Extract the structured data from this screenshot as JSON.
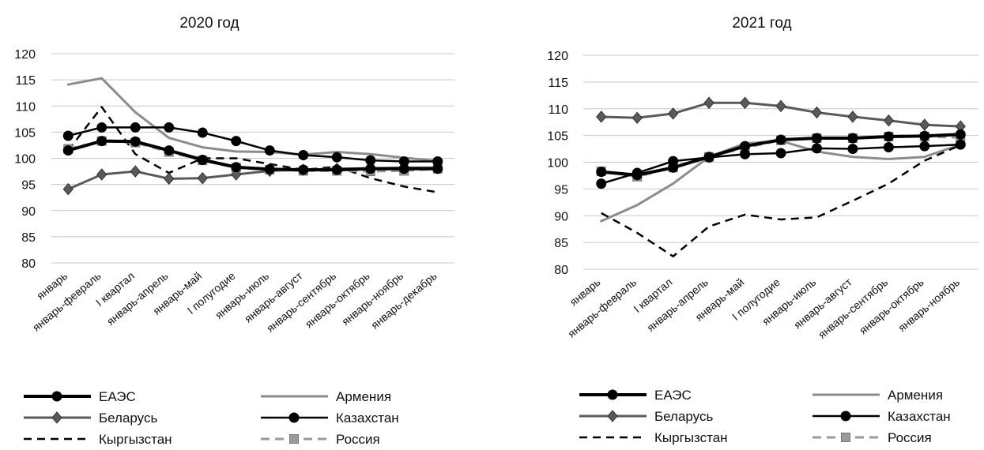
{
  "chart_data": [
    {
      "type": "line",
      "title": "2020 год",
      "xlabel": "",
      "ylabel": "",
      "ylim": [
        80,
        120
      ],
      "yticks": [
        80,
        85,
        90,
        95,
        100,
        105,
        110,
        115,
        120
      ],
      "grid": true,
      "legend_position": "bottom",
      "categories": [
        "январь",
        "январь-февраль",
        "I квартал",
        "январь-апрель",
        "январь-май",
        "I полугодие",
        "январь-июль",
        "январь-август",
        "январь-сентябрь",
        "январь-октябрь",
        "январь-ноябрь",
        "январь-декабрь"
      ],
      "series": [
        {
          "name": "ЕАЭС",
          "values": [
            101.5,
            103.3,
            103.2,
            101.5,
            99.7,
            98.3,
            97.9,
            97.8,
            97.8,
            98.0,
            98.0,
            98.0
          ]
        },
        {
          "name": "Армения",
          "values": [
            114.1,
            115.3,
            108.8,
            103.9,
            102.1,
            101.3,
            101.2,
            100.7,
            101.2,
            100.8,
            100.1,
            99.5
          ]
        },
        {
          "name": "Беларусь",
          "values": [
            94.1,
            96.9,
            97.5,
            96.1,
            96.2,
            96.9,
            97.6,
            97.8,
            98.0,
            98.1,
            98.2,
            98.2
          ]
        },
        {
          "name": "Казахстан",
          "values": [
            104.3,
            105.9,
            105.9,
            105.9,
            104.9,
            103.3,
            101.5,
            100.6,
            100.2,
            99.6,
            99.4,
            99.4
          ]
        },
        {
          "name": "Кыргызстан",
          "values": [
            101.5,
            109.8,
            100.8,
            97.2,
            100.0,
            100.0,
            98.9,
            97.8,
            98.4,
            96.2,
            94.6,
            93.5
          ]
        },
        {
          "name": "Россия",
          "values": [
            101.8,
            103.3,
            103.0,
            101.2,
            99.6,
            98.2,
            97.8,
            97.6,
            97.6,
            97.5,
            97.6,
            98.0
          ]
        }
      ]
    },
    {
      "type": "line",
      "title": "2021 год",
      "xlabel": "",
      "ylabel": "",
      "ylim": [
        80,
        120
      ],
      "yticks": [
        80,
        85,
        90,
        95,
        100,
        105,
        110,
        115,
        120
      ],
      "grid": true,
      "legend_position": "bottom",
      "categories": [
        "январь",
        "январь-февраль",
        "I квартал",
        "январь-апрель",
        "январь-май",
        "I полугодие",
        "январь-июль",
        "январь-август",
        "январь-сентябрь",
        "январь-октябрь",
        "январь-ноябрь"
      ],
      "series": [
        {
          "name": "ЕАЭС",
          "values": [
            98.2,
            97.6,
            99.0,
            101.0,
            103.0,
            104.2,
            104.5,
            104.5,
            104.8,
            104.9,
            105.2
          ]
        },
        {
          "name": "Армения",
          "values": [
            89.0,
            92.0,
            96.0,
            101.0,
            103.5,
            104.0,
            102.0,
            101.0,
            100.6,
            101.0,
            103.3
          ]
        },
        {
          "name": "Беларусь",
          "values": [
            108.5,
            108.3,
            109.1,
            111.1,
            111.1,
            110.5,
            109.3,
            108.5,
            107.8,
            107.0,
            106.7
          ]
        },
        {
          "name": "Казахстан",
          "values": [
            96.0,
            98.0,
            100.2,
            100.9,
            101.5,
            101.7,
            102.6,
            102.5,
            102.8,
            103.0,
            103.3
          ]
        },
        {
          "name": "Кыргызстан",
          "values": [
            90.5,
            86.8,
            82.4,
            88.0,
            90.2,
            89.3,
            89.7,
            92.8,
            96.0,
            100.3,
            103.2
          ]
        },
        {
          "name": "Россия",
          "values": [
            98.3,
            97.3,
            99.0,
            101.0,
            102.7,
            104.1,
            104.5,
            104.5,
            104.8,
            104.8,
            104.6
          ]
        }
      ]
    }
  ],
  "series_styles": {
    "ЕАЭС": {
      "color": "#000000",
      "width": 4,
      "dash": "",
      "marker": "circle"
    },
    "Армения": {
      "color": "#8c8c8c",
      "width": 3,
      "dash": "",
      "marker": "none"
    },
    "Беларусь": {
      "color": "#5a5a5a",
      "width": 3,
      "dash": "",
      "marker": "diamond"
    },
    "Казахстан": {
      "color": "#000000",
      "width": 2.5,
      "dash": "",
      "marker": "circle"
    },
    "Кыргызстан": {
      "color": "#000000",
      "width": 2.5,
      "dash": "10,7",
      "marker": "none"
    },
    "Россия": {
      "color": "#9a9a9a",
      "width": 3,
      "dash": "11,7",
      "marker": "square"
    }
  },
  "legend_order": [
    "ЕАЭС",
    "Армения",
    "Беларусь",
    "Казахстан",
    "Кыргызстан",
    "Россия"
  ]
}
